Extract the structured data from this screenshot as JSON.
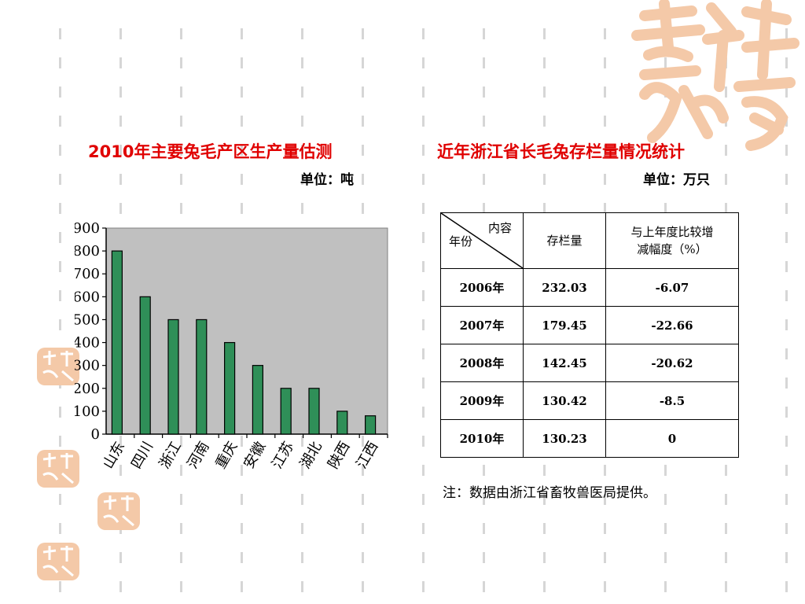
{
  "left": {
    "title": "2010年主要兔毛产区生产量估测",
    "unit": "单位：吨"
  },
  "right": {
    "title": "近年浙江省长毛兔存栏量情况统计",
    "unit": "单位：万只",
    "table": {
      "corner_top": "内容",
      "corner_bottom": "年份",
      "col1_header": "存栏量",
      "col2_header_line1": "与上年度比较增",
      "col2_header_line2": "减幅度（%）",
      "rows": [
        {
          "year": "2006年",
          "stock": "232.03",
          "change": "-6.07"
        },
        {
          "year": "2007年",
          "stock": "179.45",
          "change": "-22.66"
        },
        {
          "year": "2008年",
          "stock": "142.45",
          "change": "-20.62"
        },
        {
          "year": "2009年",
          "stock": "130.42",
          "change": "-8.5"
        },
        {
          "year": "2010年",
          "stock": "130.23",
          "change": "0"
        }
      ]
    },
    "note": "注：数据由浙江省畜牧兽医局提供。"
  },
  "chart_data": {
    "type": "bar",
    "title": "2010年主要兔毛产区生产量估测",
    "unit": "单位：吨",
    "categories": [
      "山东",
      "四川",
      "浙江",
      "河南",
      "重庆",
      "安徽",
      "江苏",
      "湖北",
      "陕西",
      "江西"
    ],
    "values": [
      800,
      600,
      500,
      500,
      400,
      300,
      200,
      200,
      100,
      80
    ],
    "yticks": [
      "0",
      "100",
      "200",
      "300",
      "400",
      "500",
      "600",
      "700",
      "800",
      "900"
    ],
    "ylim": [
      0,
      900
    ],
    "grid": false,
    "plot_background": "#c0c0c0",
    "bar_color": "#2f8f58"
  },
  "colors": {
    "title": "#e00000",
    "decoration": "#f2c7a8",
    "pattern": "#d6d6d6"
  }
}
